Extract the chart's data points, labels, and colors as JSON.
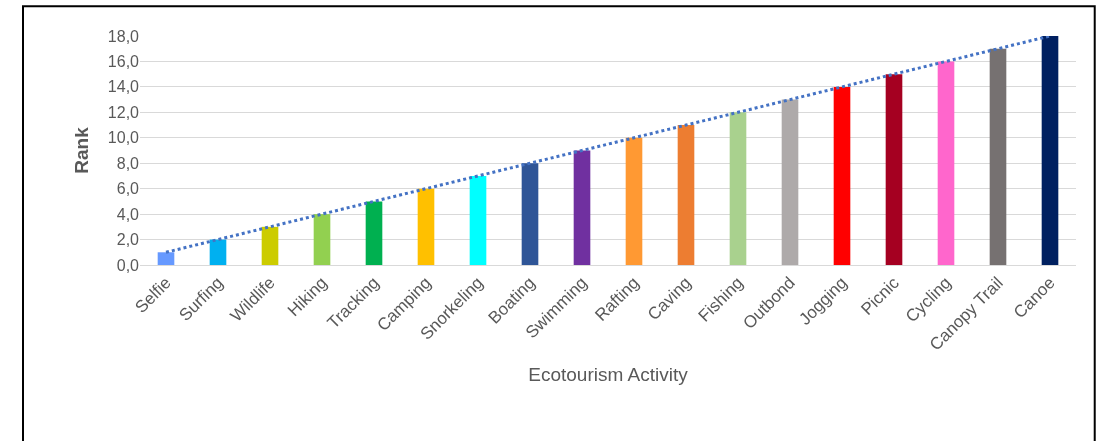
{
  "chart_data": {
    "type": "bar",
    "xlabel": "Ecotourism Activity",
    "ylabel": "Rank",
    "categories": [
      "Selfie",
      "Surfing",
      "Wildlife",
      "Hiking",
      "Tracking",
      "Camping",
      "Snorkeling",
      "Boating",
      "Swimming",
      "Rafting",
      "Caving",
      "Fishing",
      "Outbond",
      "Jogging",
      "Picnic",
      "Cycling",
      "Canopy Trail",
      "Canoe"
    ],
    "series": [
      {
        "values": [
          1,
          2,
          3,
          4,
          5,
          6,
          7,
          8,
          9,
          10,
          11,
          12,
          13,
          14,
          15,
          16,
          17,
          18
        ],
        "colors": [
          "#6699ff",
          "#00b0f0",
          "#cccc00",
          "#92d050",
          "#00b050",
          "#ffc000",
          "#00ffff",
          "#2f5597",
          "#7030a0",
          "#ff9933",
          "#ed7d31",
          "#a9d18e",
          "#aeaaaa",
          "#ff0000",
          "#a50021",
          "#ff66cc",
          "#767171",
          "#002060"
        ]
      },
      {
        "type": "line",
        "color": "#4472c4",
        "line_style": "dotted",
        "marker": "none",
        "values": [
          1,
          2,
          3,
          4,
          5,
          6,
          7,
          8,
          9,
          10,
          11,
          12,
          13,
          14,
          15,
          16,
          17,
          18
        ]
      }
    ],
    "ylim": [
      0,
      18
    ],
    "yticks": [
      {
        "value": 0,
        "label": "0,0"
      },
      {
        "value": 2,
        "label": "2,0"
      },
      {
        "value": 4,
        "label": "4,0"
      },
      {
        "value": 6,
        "label": "6,0"
      },
      {
        "value": 8,
        "label": "8,0"
      },
      {
        "value": 10,
        "label": "10,0"
      },
      {
        "value": 12,
        "label": "12,0"
      },
      {
        "value": 14,
        "label": "14,0"
      },
      {
        "value": 16,
        "label": "16,0"
      },
      {
        "value": 18,
        "label": "18,0"
      }
    ],
    "grid": "y"
  }
}
